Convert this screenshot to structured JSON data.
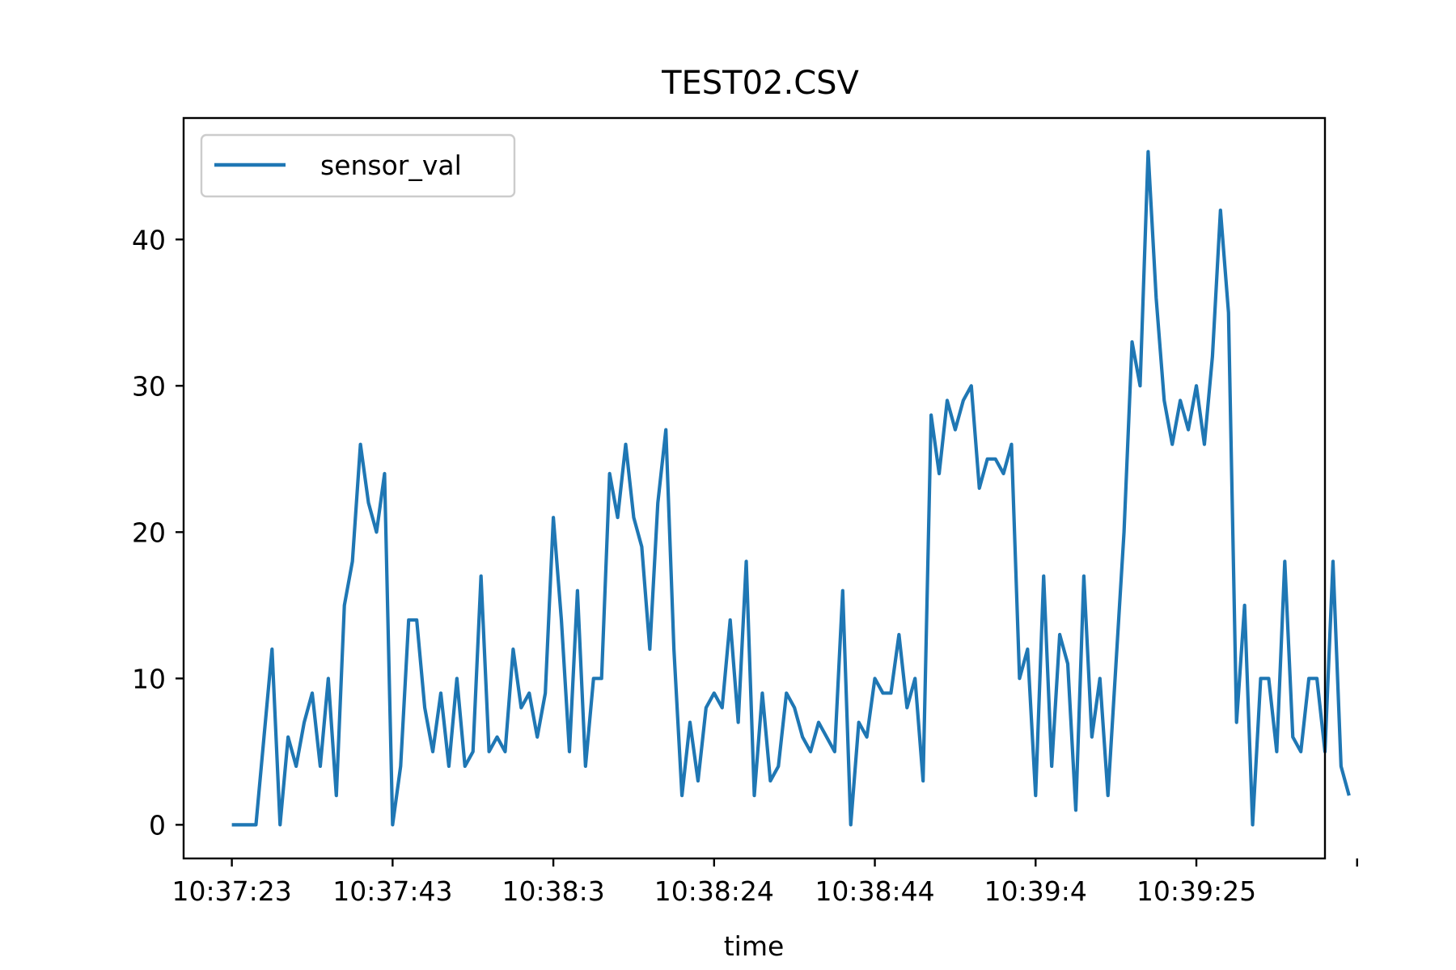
{
  "chart_data": {
    "type": "line",
    "title": "TEST02.CSV",
    "xlabel": "time",
    "ylabel": "",
    "x_tick_labels": [
      "10:37:23",
      "10:37:43",
      "10:38:3",
      "10:38:24",
      "10:38:44",
      "10:39:4",
      "10:39:25",
      ""
    ],
    "y_ticks": [
      0,
      10,
      20,
      30,
      40
    ],
    "ylim": [
      -2.3,
      48.3
    ],
    "xlim": [
      -1.8,
      40.8
    ],
    "grid": false,
    "legend_position": "upper-left",
    "series": [
      {
        "name": "sensor_val",
        "color": "#1f77b4",
        "values": [
          0,
          0,
          0,
          0,
          6,
          12,
          0,
          6,
          4,
          7,
          9,
          4,
          10,
          2,
          15,
          18,
          26,
          22,
          20,
          24,
          0,
          4,
          14,
          14,
          8,
          5,
          9,
          4,
          10,
          4,
          5,
          17,
          5,
          6,
          5,
          12,
          8,
          9,
          6,
          9,
          21,
          14,
          5,
          16,
          4,
          10,
          10,
          24,
          21,
          26,
          21,
          19,
          12,
          22,
          27,
          12,
          2,
          7,
          3,
          8,
          9,
          8,
          14,
          7,
          18,
          2,
          9,
          3,
          4,
          9,
          8,
          6,
          5,
          7,
          6,
          5,
          16,
          0,
          7,
          6,
          10,
          9,
          9,
          13,
          8,
          10,
          3,
          28,
          24,
          29,
          27,
          29,
          30,
          23,
          25,
          25,
          24,
          26,
          10,
          12,
          2,
          17,
          4,
          13,
          11,
          1,
          17,
          6,
          10,
          2,
          11,
          20,
          33,
          30,
          46,
          36,
          29,
          26,
          29,
          27,
          30,
          26,
          32,
          42,
          35,
          7,
          15,
          0,
          10,
          10,
          5,
          18,
          6,
          5,
          10,
          10,
          5,
          18,
          4,
          2
        ]
      }
    ]
  }
}
